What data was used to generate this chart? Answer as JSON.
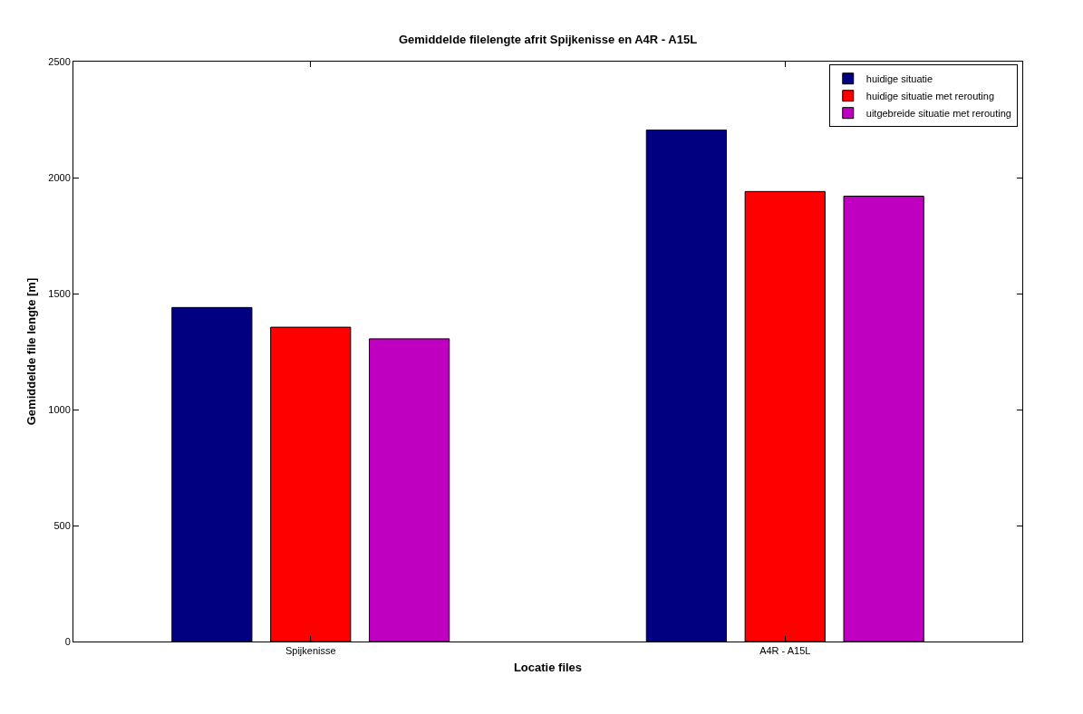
{
  "chart_data": {
    "type": "bar",
    "title": "Gemiddelde filelengte afrit Spijkenisse en A4R - A15L",
    "xlabel": "Locatie files",
    "ylabel": "Gemiddelde file lengte [m]",
    "categories": [
      "Spijkenisse",
      "A4R - A15L"
    ],
    "series": [
      {
        "name": "huidige situatie",
        "color": "#000080",
        "values": [
          1440,
          2205
        ]
      },
      {
        "name": "huidige situatie met rerouting",
        "color": "#ff0000",
        "values": [
          1355,
          1940
        ]
      },
      {
        "name": "uitgebreide situatie met rerouting",
        "color": "#c000c0",
        "values": [
          1305,
          1920
        ]
      }
    ],
    "ylim": [
      0,
      2500
    ],
    "yticks": [
      0,
      500,
      1000,
      1500,
      2000,
      2500
    ],
    "grid": false,
    "legend": "top right"
  }
}
